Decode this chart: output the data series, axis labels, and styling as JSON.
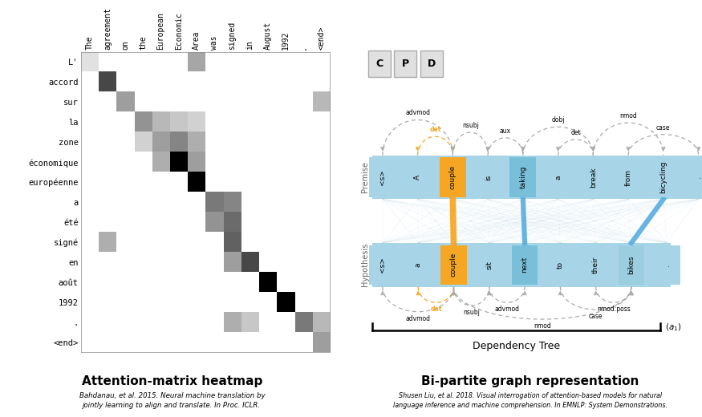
{
  "heatmap_rows": [
    "L'",
    "accord",
    "sur",
    "la",
    "zone",
    "économique",
    "européenne",
    "a",
    "été",
    "signé",
    "en",
    "août",
    "1992",
    ".",
    "<end>"
  ],
  "heatmap_cols": [
    "The",
    "agreement",
    "on",
    "the",
    "European",
    "Economic",
    "Area",
    "was",
    "signed",
    "in",
    "August",
    "1992",
    ".",
    "<end>"
  ],
  "heatmap_data": [
    [
      0.12,
      0.0,
      0.0,
      0.0,
      0.0,
      0.0,
      0.35,
      0.0,
      0.0,
      0.0,
      0.0,
      0.0,
      0.0,
      0.0
    ],
    [
      0.0,
      0.72,
      0.0,
      0.0,
      0.0,
      0.0,
      0.0,
      0.0,
      0.0,
      0.0,
      0.0,
      0.0,
      0.0,
      0.0
    ],
    [
      0.0,
      0.0,
      0.38,
      0.0,
      0.0,
      0.0,
      0.0,
      0.0,
      0.0,
      0.0,
      0.0,
      0.0,
      0.0,
      0.28
    ],
    [
      0.0,
      0.0,
      0.0,
      0.42,
      0.28,
      0.22,
      0.18,
      0.0,
      0.0,
      0.0,
      0.0,
      0.0,
      0.0,
      0.0
    ],
    [
      0.0,
      0.0,
      0.0,
      0.18,
      0.38,
      0.48,
      0.32,
      0.0,
      0.0,
      0.0,
      0.0,
      0.0,
      0.0,
      0.0
    ],
    [
      0.0,
      0.0,
      0.0,
      0.0,
      0.32,
      1.0,
      0.38,
      0.0,
      0.0,
      0.0,
      0.0,
      0.0,
      0.0,
      0.0
    ],
    [
      0.0,
      0.0,
      0.0,
      0.0,
      0.0,
      0.0,
      1.0,
      0.0,
      0.0,
      0.0,
      0.0,
      0.0,
      0.0,
      0.0
    ],
    [
      0.0,
      0.0,
      0.0,
      0.0,
      0.0,
      0.0,
      0.0,
      0.52,
      0.48,
      0.0,
      0.0,
      0.0,
      0.0,
      0.0
    ],
    [
      0.0,
      0.0,
      0.0,
      0.0,
      0.0,
      0.0,
      0.0,
      0.42,
      0.58,
      0.0,
      0.0,
      0.0,
      0.0,
      0.0
    ],
    [
      0.0,
      0.32,
      0.0,
      0.0,
      0.0,
      0.0,
      0.0,
      0.0,
      0.62,
      0.0,
      0.0,
      0.0,
      0.0,
      0.0
    ],
    [
      0.0,
      0.0,
      0.0,
      0.0,
      0.0,
      0.0,
      0.0,
      0.0,
      0.38,
      0.72,
      0.0,
      0.0,
      0.0,
      0.0
    ],
    [
      0.0,
      0.0,
      0.0,
      0.0,
      0.0,
      0.0,
      0.0,
      0.0,
      0.0,
      0.0,
      1.0,
      0.0,
      0.0,
      0.0
    ],
    [
      0.0,
      0.0,
      0.0,
      0.0,
      0.0,
      0.0,
      0.0,
      0.0,
      0.0,
      0.0,
      0.0,
      1.0,
      0.0,
      0.0
    ],
    [
      0.0,
      0.0,
      0.0,
      0.0,
      0.0,
      0.0,
      0.0,
      0.0,
      0.32,
      0.22,
      0.0,
      0.0,
      0.52,
      0.28
    ],
    [
      0.0,
      0.0,
      0.0,
      0.0,
      0.0,
      0.0,
      0.0,
      0.0,
      0.0,
      0.0,
      0.0,
      0.0,
      0.0,
      0.38
    ]
  ],
  "title_left": "Attention-matrix heatmap",
  "caption_left": "Bahdanau, et al. 2015. Neural machine translation by\njointly learning to align and translate. In Proc. ICLR.",
  "title_right": "Bi-partite graph representation",
  "caption_right": "Shusen Liu, et al. 2018. Visual interrogation of attention-based models for natural\nlanguage inference and machine comprehension. In EMNLP: System Demonstrations.",
  "premise_words": [
    "<s>",
    "A",
    "couple",
    "is",
    "taking",
    "a",
    "break",
    "from",
    "bicycling",
    "."
  ],
  "hypothesis_words": [
    "<s>",
    "a",
    "couple",
    "sit",
    "next",
    "to",
    "their",
    "bikes",
    "."
  ],
  "bg_blue": "#A8D4E8",
  "orange": "#F5A623",
  "blue_strong": "#5BAEE0",
  "blue_line": "#A8CCE0",
  "arc_color": "#AAAAAA",
  "arc_orange": "#F5A623"
}
